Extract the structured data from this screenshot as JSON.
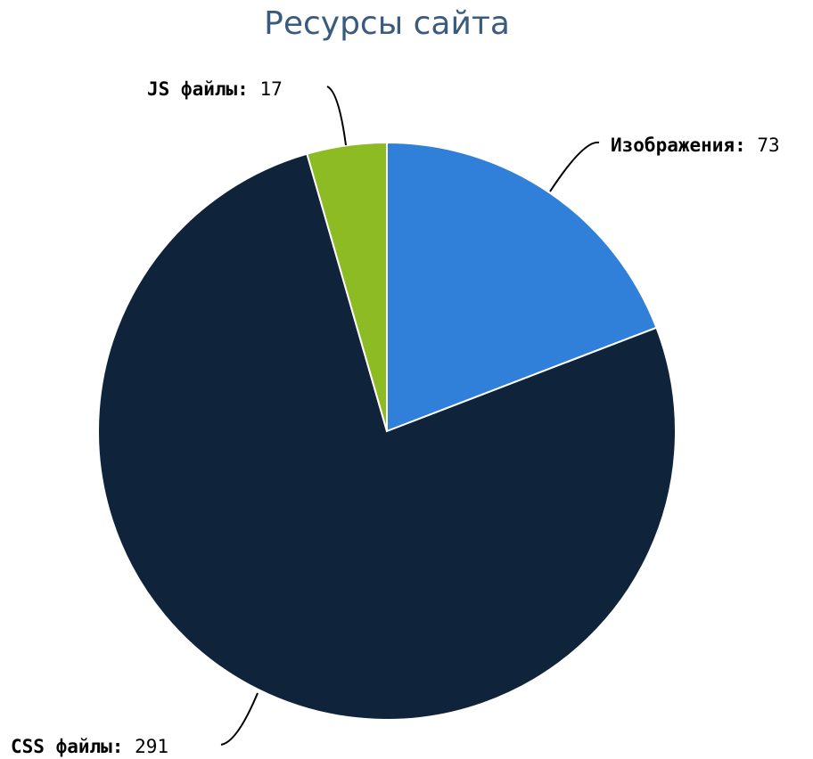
{
  "chart_data": {
    "type": "pie",
    "title": "Ресурсы сайта",
    "separator": ":",
    "slices": [
      {
        "label": "Изображения",
        "value": 73,
        "color": "#3080da"
      },
      {
        "label": "CSS файлы",
        "value": 291,
        "color": "#0f233a"
      },
      {
        "label": "JS файлы",
        "value": 17,
        "color": "#8cbb23"
      }
    ],
    "start_angle": "12 o'clock",
    "direction": "clockwise",
    "data_labels": "outside with connector lines"
  }
}
